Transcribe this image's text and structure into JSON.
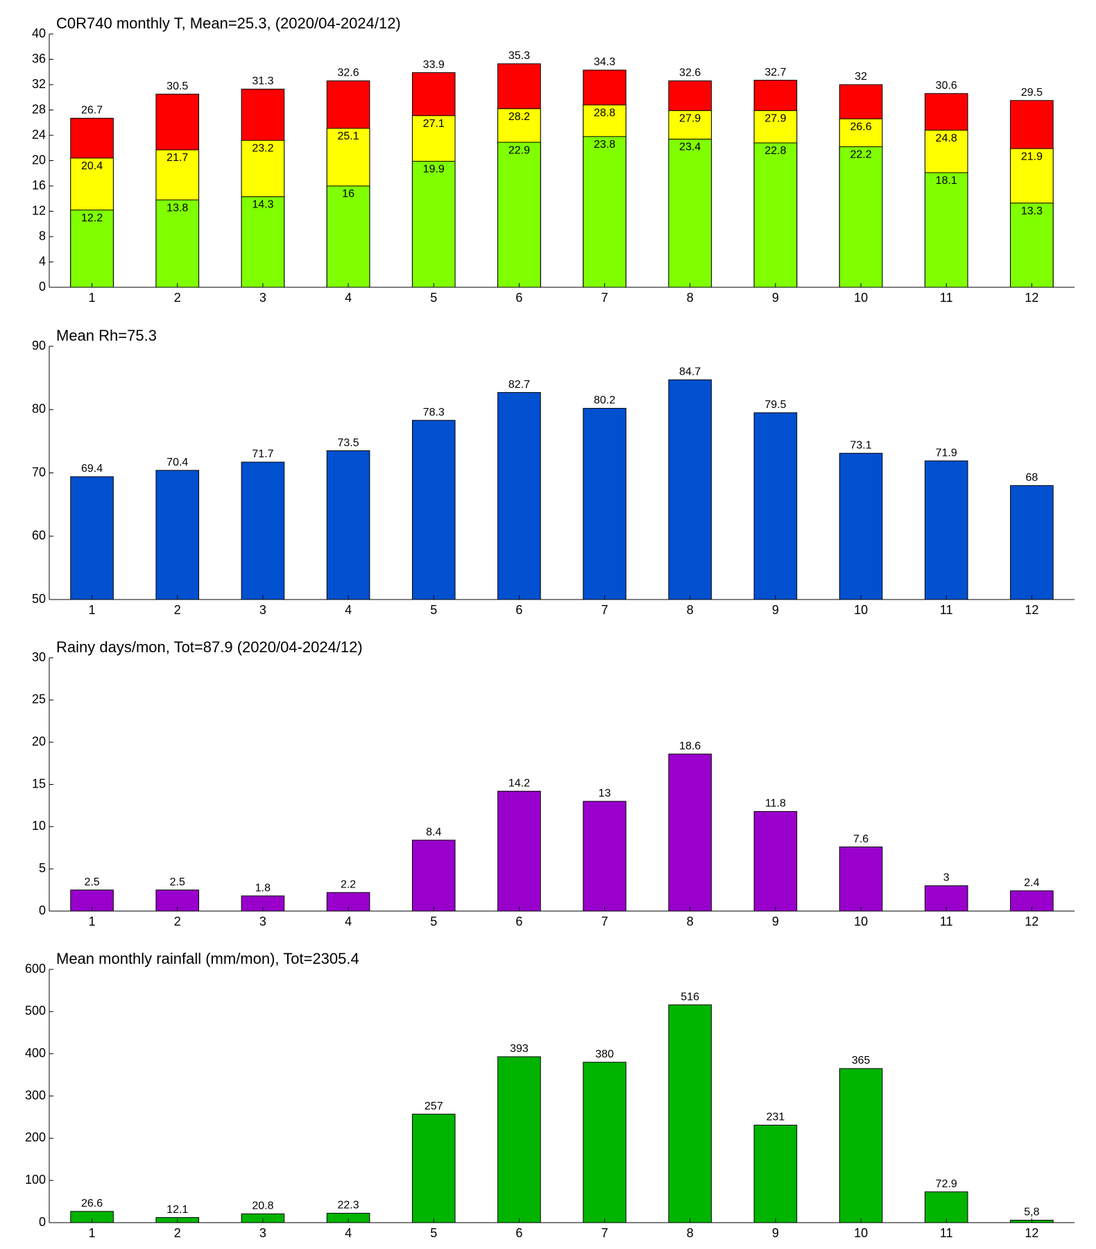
{
  "chart_data": [
    {
      "type": "bar",
      "title": "C0R740 monthly T, Mean=25.3, (2020/04-2024/12)",
      "barmode": "overlay",
      "categories": [
        "1",
        "2",
        "3",
        "4",
        "5",
        "6",
        "7",
        "8",
        "9",
        "10",
        "11",
        "12"
      ],
      "series": [
        {
          "color": "#ff0000",
          "values": [
            26.7,
            30.5,
            31.3,
            32.6,
            33.9,
            35.3,
            34.3,
            32.6,
            32.7,
            32,
            30.6,
            29.5
          ]
        },
        {
          "color": "#ffff00",
          "values": [
            20.4,
            21.7,
            23.2,
            25.1,
            27.1,
            28.2,
            28.8,
            27.9,
            27.9,
            26.6,
            24.8,
            21.9
          ]
        },
        {
          "color": "#80ff00",
          "values": [
            12.2,
            13.8,
            14.3,
            16,
            19.9,
            22.9,
            23.8,
            23.4,
            22.8,
            22.2,
            18.1,
            13.3
          ]
        }
      ],
      "ylim": [
        0,
        40
      ],
      "yticks": [
        0,
        4,
        8,
        12,
        16,
        20,
        24,
        28,
        32,
        36,
        40
      ]
    },
    {
      "type": "bar",
      "title": "Mean Rh=75.3",
      "categories": [
        "1",
        "2",
        "3",
        "4",
        "5",
        "6",
        "7",
        "8",
        "9",
        "10",
        "11",
        "12"
      ],
      "series": [
        {
          "color": "#0050d0",
          "values": [
            69.4,
            70.4,
            71.7,
            73.5,
            78.3,
            82.7,
            80.2,
            84.7,
            79.5,
            73.1,
            71.9,
            68
          ]
        }
      ],
      "ylim": [
        50,
        90
      ],
      "yticks": [
        50,
        60,
        70,
        80,
        90
      ]
    },
    {
      "type": "bar",
      "title": "Rainy days/mon, Tot=87.9 (2020/04-2024/12)",
      "categories": [
        "1",
        "2",
        "3",
        "4",
        "5",
        "6",
        "7",
        "8",
        "9",
        "10",
        "11",
        "12"
      ],
      "series": [
        {
          "color": "#9900cc",
          "values": [
            2.5,
            2.5,
            1.8,
            2.2,
            8.4,
            14.2,
            13,
            18.6,
            11.8,
            7.6,
            3,
            2.4
          ]
        }
      ],
      "ylim": [
        0,
        30
      ],
      "yticks": [
        0,
        5,
        10,
        15,
        20,
        25,
        30
      ]
    },
    {
      "type": "bar",
      "title": "Mean monthly rainfall (mm/mon), Tot=2305.4",
      "categories": [
        "1",
        "2",
        "3",
        "4",
        "5",
        "6",
        "7",
        "8",
        "9",
        "10",
        "11",
        "12"
      ],
      "series": [
        {
          "color": "#00b400",
          "values": [
            26.6,
            12.1,
            20.8,
            22.3,
            257,
            393,
            380,
            516,
            231,
            365,
            72.9,
            5.8
          ],
          "value_labels": [
            "26.6",
            "12.1",
            "20.8",
            "22.3",
            "257",
            "393",
            "380",
            "516",
            "231",
            "365",
            "72.9",
            "5,8"
          ]
        }
      ],
      "ylim": [
        0,
        600
      ],
      "yticks": [
        0,
        100,
        200,
        300,
        400,
        500,
        600
      ]
    }
  ]
}
